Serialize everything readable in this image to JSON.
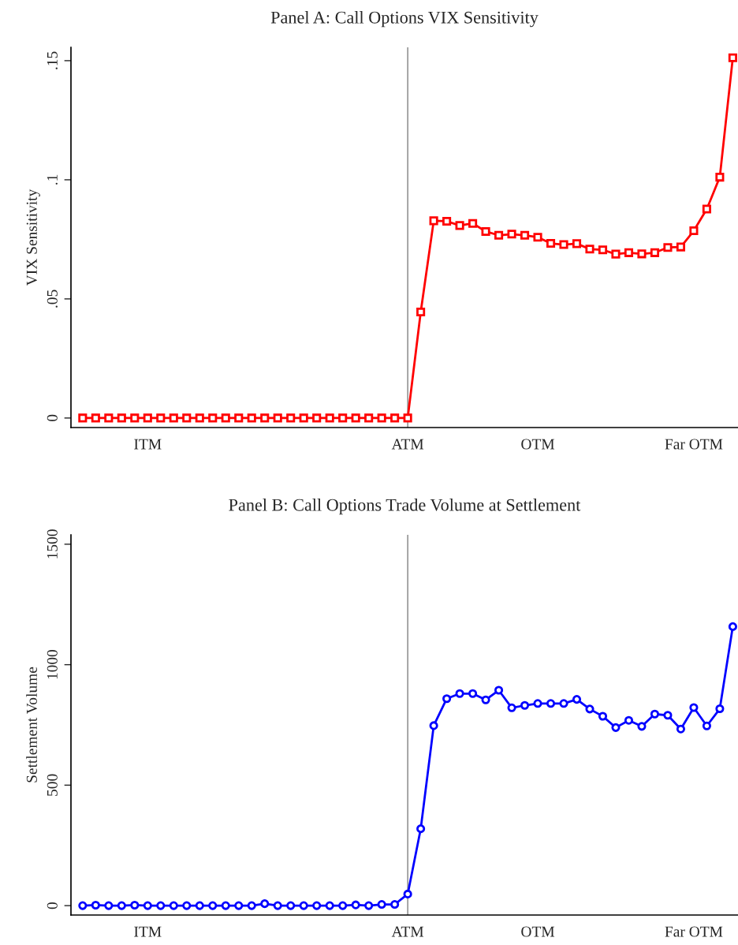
{
  "chart_data": [
    {
      "type": "line",
      "title": "Panel A: Call Options VIX Sensitivity",
      "ylabel": "VIX Sensitivity",
      "marker": "square",
      "grid": false,
      "legend": false,
      "categories": [
        null,
        null,
        null,
        null,
        null,
        "ITM",
        null,
        null,
        null,
        null,
        null,
        null,
        null,
        null,
        null,
        null,
        null,
        null,
        null,
        null,
        null,
        null,
        null,
        null,
        null,
        "ATM",
        null,
        null,
        null,
        null,
        null,
        null,
        null,
        null,
        null,
        "OTM",
        null,
        null,
        null,
        null,
        null,
        null,
        null,
        null,
        null,
        null,
        null,
        "Far OTM",
        null,
        null,
        null
      ],
      "series": [
        {
          "color": "#ff0000",
          "values": [
            0,
            0,
            0,
            0,
            0,
            0,
            0,
            0,
            0,
            0,
            0,
            0,
            0,
            0,
            0,
            0,
            0,
            0,
            0,
            0,
            0,
            0,
            0,
            0,
            0,
            0,
            0.0445,
            0.0828,
            0.0826,
            0.0808,
            0.0817,
            0.0783,
            0.0767,
            0.0772,
            0.0767,
            0.0759,
            0.0733,
            0.0728,
            0.0732,
            0.0709,
            0.0706,
            0.0688,
            0.0694,
            0.0689,
            0.0694,
            0.0716,
            0.0718,
            0.0786,
            0.0877,
            0.1011,
            0.1512
          ]
        }
      ],
      "ylim": [
        -0.004,
        0.1556
      ],
      "yticks": [
        {
          "value": 0,
          "label": "0"
        },
        {
          "value": 0.05,
          "label": ".05"
        },
        {
          "value": 0.1,
          "label": ".1"
        },
        {
          "value": 0.15,
          "label": ".15"
        }
      ],
      "ref_lines": [
        {
          "axis": "x",
          "value": "ATM",
          "color": "#808080"
        }
      ]
    },
    {
      "type": "line",
      "title": "Panel B: Call Options Trade Volume at Settlement",
      "ylabel": "Settlement Volume",
      "marker": "circle",
      "grid": false,
      "legend": false,
      "categories": [
        null,
        null,
        null,
        null,
        null,
        "ITM",
        null,
        null,
        null,
        null,
        null,
        null,
        null,
        null,
        null,
        null,
        null,
        null,
        null,
        null,
        null,
        null,
        null,
        null,
        null,
        "ATM",
        null,
        null,
        null,
        null,
        null,
        null,
        null,
        null,
        null,
        "OTM",
        null,
        null,
        null,
        null,
        null,
        null,
        null,
        null,
        null,
        null,
        null,
        "Far OTM",
        null,
        null,
        null
      ],
      "series": [
        {
          "color": "#0000ff",
          "values": [
            0,
            2,
            0,
            0,
            2,
            0,
            0,
            0,
            0,
            0,
            0,
            0,
            0,
            0,
            8,
            0,
            0,
            0,
            0,
            0,
            0,
            3,
            0,
            5,
            5,
            48,
            319,
            747,
            859,
            880,
            880,
            854,
            894,
            821,
            831,
            839,
            839,
            839,
            856,
            816,
            786,
            739,
            769,
            744,
            795,
            790,
            733,
            822,
            746,
            817,
            1158
          ]
        }
      ],
      "ylim": [
        -39,
        1539
      ],
      "yticks": [
        0,
        500,
        1000,
        1500
      ],
      "ref_lines": [
        {
          "axis": "x",
          "value": "ATM",
          "color": "#808080"
        }
      ]
    }
  ]
}
